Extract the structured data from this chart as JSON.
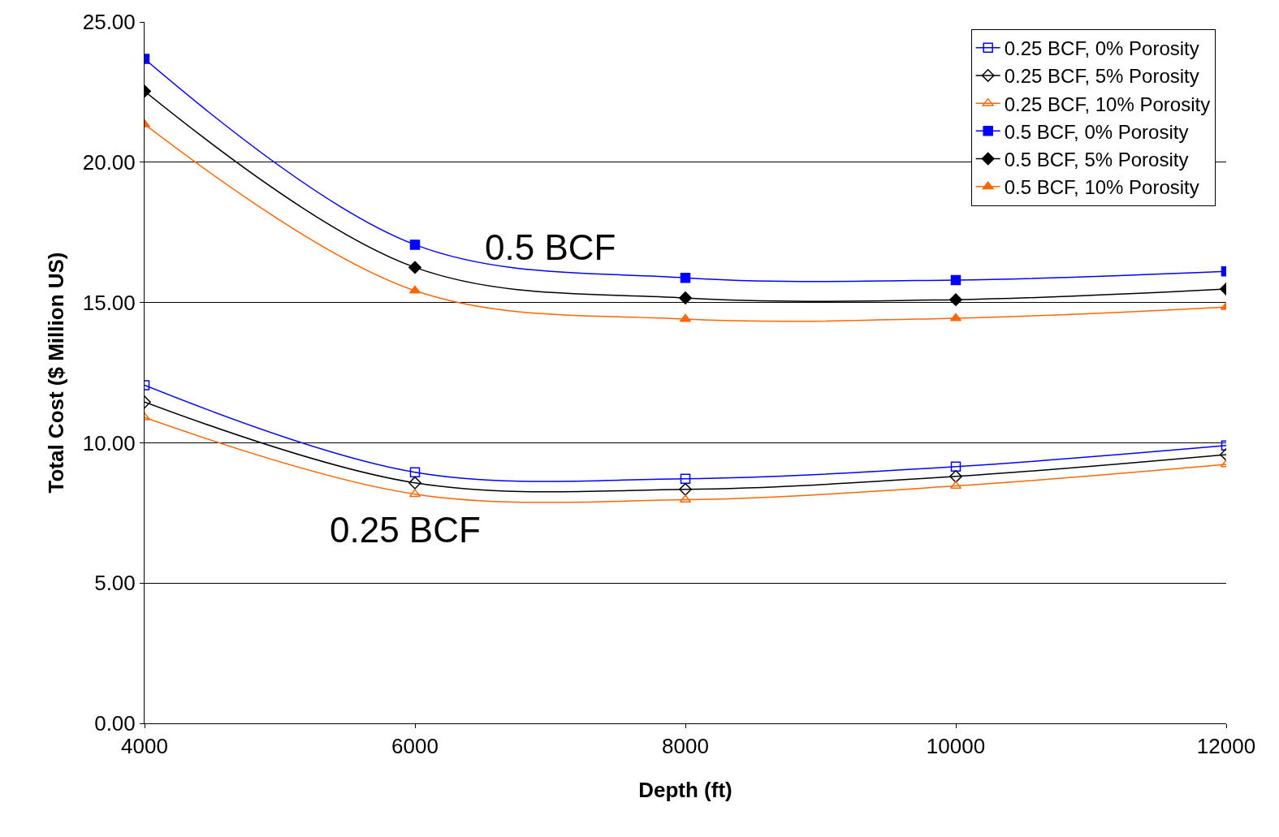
{
  "chart_data": {
    "type": "line",
    "xlabel": "Depth (ft)",
    "ylabel": "Total Cost ($ Million US)",
    "x": [
      4000,
      6000,
      8000,
      10000,
      12000
    ],
    "series": [
      {
        "name": "0.25 BCF, 0% Porosity",
        "color": "#0000ff",
        "marker": "square-open",
        "values": [
          12.05,
          8.95,
          8.72,
          9.15,
          9.9
        ]
      },
      {
        "name": "0.25 BCF, 5% Porosity",
        "color": "#000000",
        "marker": "diamond-open",
        "values": [
          11.45,
          8.57,
          8.34,
          8.8,
          9.58
        ]
      },
      {
        "name": "0.25 BCF, 10% Porosity",
        "color": "#ff6600",
        "marker": "triangle-open",
        "values": [
          10.9,
          8.17,
          7.97,
          8.46,
          9.23
        ]
      },
      {
        "name": "0.5 BCF, 0% Porosity",
        "color": "#0000ff",
        "marker": "square",
        "values": [
          23.68,
          17.06,
          15.88,
          15.8,
          16.11
        ]
      },
      {
        "name": "0.5 BCF, 5% Porosity",
        "color": "#000000",
        "marker": "diamond",
        "values": [
          22.53,
          16.25,
          15.16,
          15.1,
          15.48
        ]
      },
      {
        "name": "0.5 BCF, 10% Porosity",
        "color": "#ff6600",
        "marker": "triangle",
        "values": [
          21.35,
          15.42,
          14.41,
          14.44,
          14.84
        ]
      }
    ],
    "xlim": [
      4000,
      12000
    ],
    "xticks": [
      4000,
      6000,
      8000,
      10000,
      12000
    ],
    "ylim": [
      0,
      25
    ],
    "yticks": [
      {
        "value": 0,
        "label": "0.00"
      },
      {
        "value": 5,
        "label": "5.00"
      },
      {
        "value": 10,
        "label": "10.00"
      },
      {
        "value": 15,
        "label": "15.00"
      },
      {
        "value": 20,
        "label": "20.00"
      },
      {
        "value": 25,
        "label": "25.00"
      }
    ],
    "annotations": [
      "0.5 BCF",
      "0.25 BCF"
    ],
    "grid": "y",
    "legend": "top right",
    "line_style": "solid"
  }
}
